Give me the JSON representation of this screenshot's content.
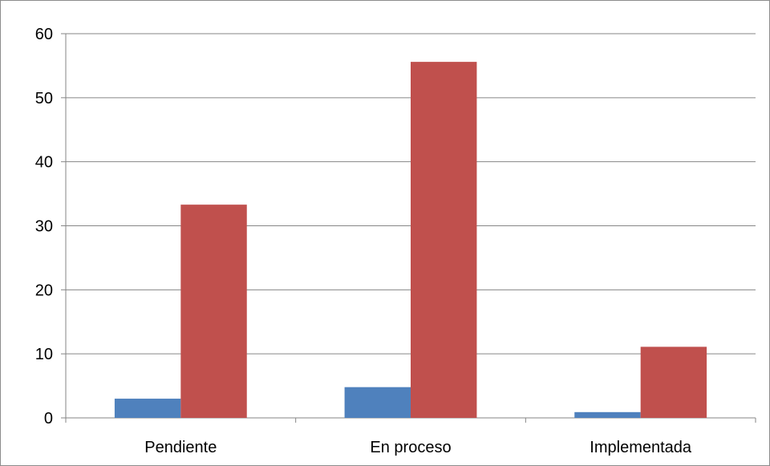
{
  "chart_data": {
    "type": "bar",
    "categories": [
      "Pendiente",
      "En proceso",
      "Implementada"
    ],
    "series": [
      {
        "values": [
          3,
          4.8,
          0.9
        ],
        "color": "#4f81bd"
      },
      {
        "values": [
          33.3,
          55.6,
          11.1
        ],
        "color": "#c0504d"
      }
    ],
    "title": "",
    "xlabel": "",
    "ylabel": "",
    "ylim": [
      0,
      60
    ],
    "yticks": [
      0,
      10,
      20,
      30,
      40,
      50,
      60
    ],
    "grid": true,
    "legend": "none"
  }
}
